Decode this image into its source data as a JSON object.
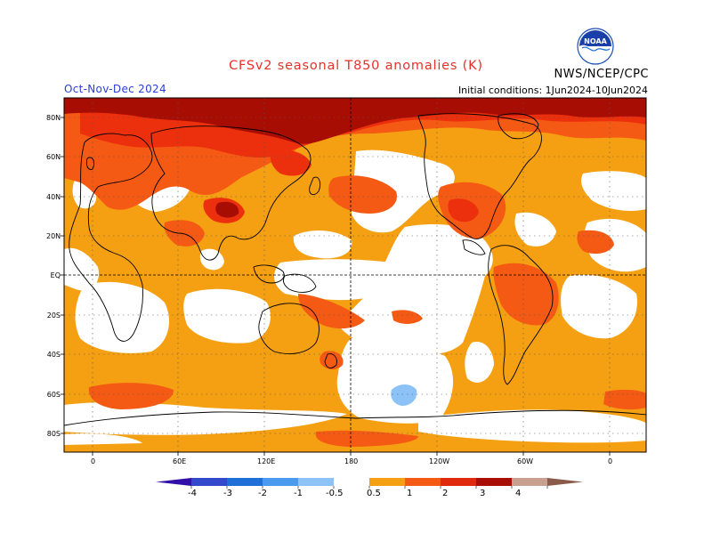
{
  "title": "CFSv2 seasonal T850 anomalies (K)",
  "season": "Oct-Nov-Dec 2024",
  "initial_conditions": "Initial conditions: 1Jun2024-10Jun2024",
  "agency": "NWS/NCEP/CPC",
  "logo_text": "NOAA",
  "lat_labels": [
    "80N",
    "60N",
    "40N",
    "20N",
    "EQ",
    "20S",
    "40S",
    "60S",
    "80S"
  ],
  "lon_labels": [
    "0",
    "60E",
    "120E",
    "180",
    "120W",
    "60W",
    "0"
  ],
  "colorbar": {
    "labels": [
      "-4",
      "-3",
      "-2",
      "-1",
      "-0.5",
      "0.5",
      "1",
      "2",
      "3",
      "4"
    ],
    "colors": [
      "#3010a8",
      "#3448cc",
      "#1e6fd6",
      "#4a9af0",
      "#8cc2f5",
      "#ffffff",
      "#f5a012",
      "#f55a14",
      "#e02a0e",
      "#a80e04",
      "#c8a090",
      "#8a5a4a"
    ]
  },
  "colors": {
    "warm_05": "#f5a012",
    "warm_1": "#f55a14",
    "warm_2": "#ec2f0c",
    "warm_3": "#a80d04",
    "cool_05": "#8cc2f5"
  }
}
